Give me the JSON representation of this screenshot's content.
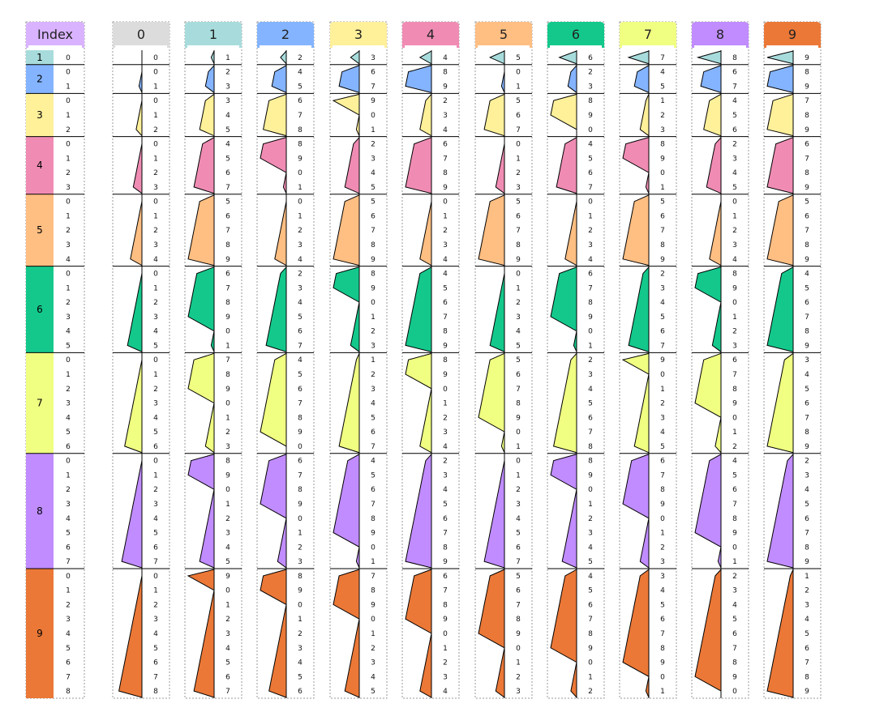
{
  "index_header": "Index",
  "row_labels": [
    "1",
    "2",
    "3",
    "4",
    "5",
    "6",
    "7",
    "8",
    "9"
  ],
  "column_headers": [
    "0",
    "1",
    "2",
    "3",
    "4",
    "5",
    "6",
    "7",
    "8",
    "9"
  ],
  "colors": {
    "index": "#d9b3ff",
    "columns": [
      "#dcdcdc",
      "#a8dcdc",
      "#84b4ff",
      "#fff09a",
      "#f08cb4",
      "#ffbe82",
      "#14c88c",
      "#f0ff82",
      "#c08cff",
      "#eb7837"
    ],
    "groups": [
      "#a8dcdc",
      "#84b4ff",
      "#fff09a",
      "#f08cb4",
      "#ffbe82",
      "#14c88c",
      "#f0ff82",
      "#c08cff",
      "#eb7837"
    ],
    "divider": "#000000",
    "frame": "#999999"
  }
}
